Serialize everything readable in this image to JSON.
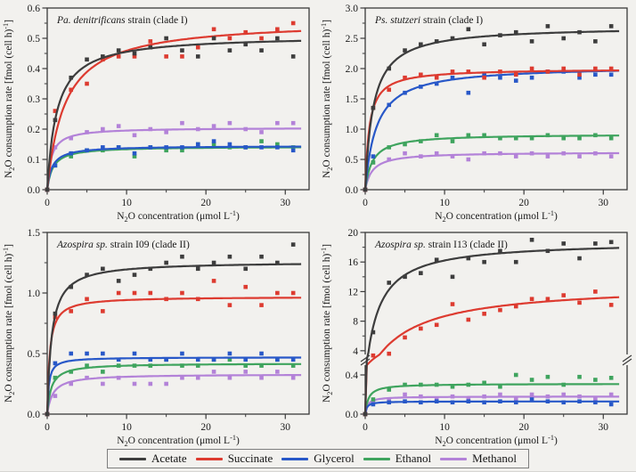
{
  "figure_bg": "#f2f1ee",
  "axis_color": "#3a3a3a",
  "x_axis_label": "N_{2}O concentration (μmol L^{-1})",
  "y_axis_label": "N_{2}O consumption rate [fmol (cell h)^{-1}]",
  "legend": {
    "items": [
      {
        "label": "Acetate",
        "color": "#3d3d3d"
      },
      {
        "label": "Succinate",
        "color": "#dd3b30"
      },
      {
        "label": "Glycerol",
        "color": "#2858c8"
      },
      {
        "label": "Ethanol",
        "color": "#3fa45e"
      },
      {
        "label": "Methanol",
        "color": "#b382d8"
      }
    ]
  },
  "chart_data": [
    {
      "type": "scatter",
      "title": "*Pa. denitrificans* strain (clade I)",
      "xlim": [
        0,
        33
      ],
      "xticks": [
        0,
        10,
        20,
        30
      ],
      "xminor": [
        5,
        15,
        25
      ],
      "ylim": [
        0,
        0.6
      ],
      "yticks": [
        0.0,
        0.1,
        0.2,
        0.3,
        0.4,
        0.5,
        0.6
      ],
      "yminor": [
        0.05,
        0.15,
        0.25,
        0.35,
        0.45,
        0.55
      ],
      "ytick_decimals": 1,
      "x": [
        0,
        1,
        3,
        5,
        7,
        9,
        11,
        13,
        15,
        17,
        19,
        21,
        23,
        25,
        27,
        29,
        31
      ],
      "series": [
        {
          "name": "Acetate",
          "color": "#3d3d3d",
          "vmax": 0.51,
          "km": 1.2,
          "points": [
            0,
            0.23,
            0.37,
            0.43,
            0.44,
            0.46,
            0.45,
            0.47,
            0.5,
            0.46,
            0.44,
            0.5,
            0.46,
            0.48,
            0.46,
            0.5,
            0.44
          ]
        },
        {
          "name": "Succinate",
          "color": "#dd3b30",
          "vmax": 0.56,
          "km": 2.2,
          "points": [
            0,
            0.26,
            0.33,
            0.35,
            0.43,
            0.44,
            0.44,
            0.49,
            0.44,
            0.44,
            0.47,
            0.53,
            0.5,
            0.52,
            0.5,
            0.53,
            0.55
          ]
        },
        {
          "name": "Glycerol",
          "color": "#2858c8",
          "vmax": 0.145,
          "km": 0.6,
          "points": [
            0,
            0.08,
            0.12,
            0.13,
            0.14,
            0.14,
            0.12,
            0.14,
            0.14,
            0.14,
            0.15,
            0.16,
            0.15,
            0.14,
            0.14,
            0.14,
            0.13
          ]
        },
        {
          "name": "Ethanol",
          "color": "#3fa45e",
          "vmax": 0.143,
          "km": 0.7,
          "points": [
            0,
            0.08,
            0.11,
            0.13,
            0.13,
            0.14,
            0.11,
            0.14,
            0.13,
            0.13,
            0.15,
            0.15,
            0.14,
            0.14,
            0.16,
            0.15,
            0.14
          ]
        },
        {
          "name": "Methanol",
          "color": "#b382d8",
          "vmax": 0.205,
          "km": 0.5,
          "points": [
            0,
            0.14,
            0.17,
            0.19,
            0.2,
            0.21,
            0.18,
            0.2,
            0.19,
            0.22,
            0.2,
            0.21,
            0.22,
            0.2,
            0.19,
            0.22,
            0.22
          ]
        }
      ]
    },
    {
      "type": "scatter",
      "title": "*Ps. stutzeri* strain (clade I)",
      "xlim": [
        0,
        33
      ],
      "xticks": [
        0,
        10,
        20,
        30
      ],
      "xminor": [
        5,
        15,
        25
      ],
      "ylim": [
        0,
        3.0
      ],
      "yticks": [
        0.0,
        0.5,
        1.0,
        1.5,
        2.0,
        2.5,
        3.0
      ],
      "yminor": [
        0.25,
        0.75,
        1.25,
        1.75,
        2.25,
        2.75
      ],
      "ytick_decimals": 1,
      "x": [
        0,
        1,
        3,
        5,
        7,
        9,
        11,
        13,
        15,
        17,
        19,
        21,
        23,
        25,
        27,
        29,
        31
      ],
      "series": [
        {
          "name": "Acetate",
          "color": "#3d3d3d",
          "vmax": 2.7,
          "km": 1.0,
          "points": [
            0,
            1.35,
            2.0,
            2.3,
            2.4,
            2.45,
            2.5,
            2.65,
            2.4,
            2.55,
            2.6,
            2.45,
            2.7,
            2.5,
            2.6,
            2.45,
            2.7
          ]
        },
        {
          "name": "Succinate",
          "color": "#dd3b30",
          "vmax": 2.0,
          "km": 0.5,
          "points": [
            0,
            1.35,
            1.65,
            1.85,
            1.9,
            1.85,
            1.95,
            1.95,
            1.85,
            1.95,
            1.9,
            2.0,
            1.95,
            2.0,
            1.9,
            2.0,
            2.0
          ]
        },
        {
          "name": "Glycerol",
          "color": "#2858c8",
          "vmax": 2.05,
          "km": 1.4,
          "points": [
            0,
            0.55,
            1.4,
            1.6,
            1.7,
            1.75,
            1.85,
            1.6,
            1.9,
            1.85,
            1.8,
            1.85,
            1.95,
            1.95,
            1.85,
            1.9,
            1.9
          ]
        },
        {
          "name": "Ethanol",
          "color": "#3fa45e",
          "vmax": 0.92,
          "km": 0.9,
          "points": [
            0,
            0.45,
            0.7,
            0.75,
            0.8,
            0.9,
            0.8,
            0.9,
            0.9,
            0.85,
            0.85,
            0.85,
            0.9,
            0.85,
            0.85,
            0.9,
            0.85
          ]
        },
        {
          "name": "Methanol",
          "color": "#b382d8",
          "vmax": 0.62,
          "km": 0.9,
          "points": [
            0,
            0.45,
            0.5,
            0.6,
            0.55,
            0.6,
            0.55,
            0.5,
            0.6,
            0.6,
            0.55,
            0.6,
            0.55,
            0.6,
            0.55,
            0.6,
            0.55
          ]
        }
      ]
    },
    {
      "type": "scatter",
      "title": "*Azospira sp.* strain I09 (clade II)",
      "xlim": [
        0,
        33
      ],
      "xticks": [
        0,
        10,
        20,
        30
      ],
      "xminor": [
        5,
        15,
        25
      ],
      "ylim": [
        0,
        1.5
      ],
      "yticks": [
        0.0,
        0.5,
        1.0,
        1.5
      ],
      "yminor": [
        0.25,
        0.75,
        1.25
      ],
      "ytick_decimals": 1,
      "x": [
        0,
        1,
        3,
        5,
        7,
        9,
        11,
        13,
        15,
        17,
        19,
        21,
        23,
        25,
        27,
        29,
        31
      ],
      "series": [
        {
          "name": "Acetate",
          "color": "#3d3d3d",
          "vmax": 1.26,
          "km": 0.55,
          "points": [
            0,
            0.83,
            1.05,
            1.15,
            1.2,
            1.1,
            1.15,
            1.2,
            1.25,
            1.3,
            1.2,
            1.25,
            1.3,
            1.2,
            1.3,
            1.25,
            1.4
          ]
        },
        {
          "name": "Succinate",
          "color": "#dd3b30",
          "vmax": 0.97,
          "km": 0.3,
          "points": [
            0,
            0.8,
            0.85,
            0.95,
            0.85,
            1.0,
            1.0,
            1.0,
            0.95,
            1.0,
            0.95,
            1.1,
            0.9,
            1.05,
            0.9,
            1.0,
            1.0
          ]
        },
        {
          "name": "Glycerol",
          "color": "#2858c8",
          "vmax": 0.47,
          "km": 0.2,
          "points": [
            0,
            0.42,
            0.5,
            0.5,
            0.5,
            0.45,
            0.5,
            0.45,
            0.45,
            0.5,
            0.45,
            0.45,
            0.5,
            0.45,
            0.5,
            0.45,
            0.45
          ]
        },
        {
          "name": "Ethanol",
          "color": "#3fa45e",
          "vmax": 0.42,
          "km": 0.5,
          "points": [
            0,
            0.3,
            0.35,
            0.4,
            0.35,
            0.4,
            0.4,
            0.4,
            0.45,
            0.4,
            0.4,
            0.45,
            0.45,
            0.4,
            0.4,
            0.45,
            0.4
          ]
        },
        {
          "name": "Methanol",
          "color": "#b382d8",
          "vmax": 0.33,
          "km": 0.7,
          "points": [
            0,
            0.15,
            0.25,
            0.3,
            0.25,
            0.3,
            0.25,
            0.25,
            0.25,
            0.3,
            0.3,
            0.35,
            0.3,
            0.35,
            0.3,
            0.35,
            0.3
          ]
        }
      ]
    },
    {
      "type": "scatter",
      "title": "*Azospira sp.* strain I13 (clade II)",
      "xlim": [
        0,
        33
      ],
      "xticks": [
        0,
        10,
        20,
        30
      ],
      "xminor": [
        5,
        15,
        25
      ],
      "ylim": [
        0,
        20
      ],
      "y_break": {
        "lower": [
          0,
          0.5
        ],
        "upper": [
          3.5,
          20
        ],
        "lower_ticks": [
          0.0,
          0.4
        ],
        "upper_ticks": [
          4,
          8,
          12,
          16,
          20
        ],
        "lower_minor": [
          0.2
        ],
        "upper_minor": [
          6,
          10,
          14,
          18
        ],
        "lower_tick_decimals": 1,
        "upper_tick_decimals": 0
      },
      "x": [
        0,
        1,
        3,
        5,
        7,
        9,
        11,
        13,
        15,
        17,
        19,
        21,
        23,
        25,
        27,
        29,
        31
      ],
      "series": [
        {
          "name": "Acetate",
          "color": "#3d3d3d",
          "vmax": 18.8,
          "km": 1.6,
          "points": [
            0,
            6.5,
            13.2,
            14,
            14.5,
            16.3,
            14,
            16.5,
            16,
            17.5,
            16,
            19,
            17.5,
            18.5,
            16.5,
            18.5,
            18.7
          ]
        },
        {
          "name": "Succinate",
          "color": "#dd3b30",
          "vmax": 13.0,
          "km": 5.0,
          "points": [
            0,
            3.2,
            3.6,
            5.8,
            7.0,
            7.5,
            10.3,
            8.2,
            9.0,
            9.5,
            10.0,
            11.0,
            11.0,
            11.5,
            10.5,
            12.0,
            10.2
          ]
        },
        {
          "name": "Glycerol",
          "color": "#2858c8",
          "vmax": 0.13,
          "km": 0.2,
          "points": [
            0,
            0.1,
            0.12,
            0.13,
            0.12,
            0.13,
            0.12,
            0.13,
            0.12,
            0.13,
            0.12,
            0.15,
            0.13,
            0.12,
            0.13,
            0.12,
            0.1
          ]
        },
        {
          "name": "Ethanol",
          "color": "#3fa45e",
          "vmax": 0.31,
          "km": 0.4,
          "points": [
            0,
            0.15,
            0.25,
            0.3,
            0.3,
            0.3,
            0.28,
            0.3,
            0.32,
            0.28,
            0.4,
            0.35,
            0.38,
            0.3,
            0.38,
            0.35,
            0.37
          ]
        },
        {
          "name": "Methanol",
          "color": "#b382d8",
          "vmax": 0.18,
          "km": 0.3,
          "points": [
            0,
            0.12,
            0.15,
            0.2,
            0.18,
            0.15,
            0.18,
            0.15,
            0.18,
            0.2,
            0.15,
            0.2,
            0.18,
            0.2,
            0.18,
            0.15,
            0.2
          ]
        }
      ]
    }
  ]
}
